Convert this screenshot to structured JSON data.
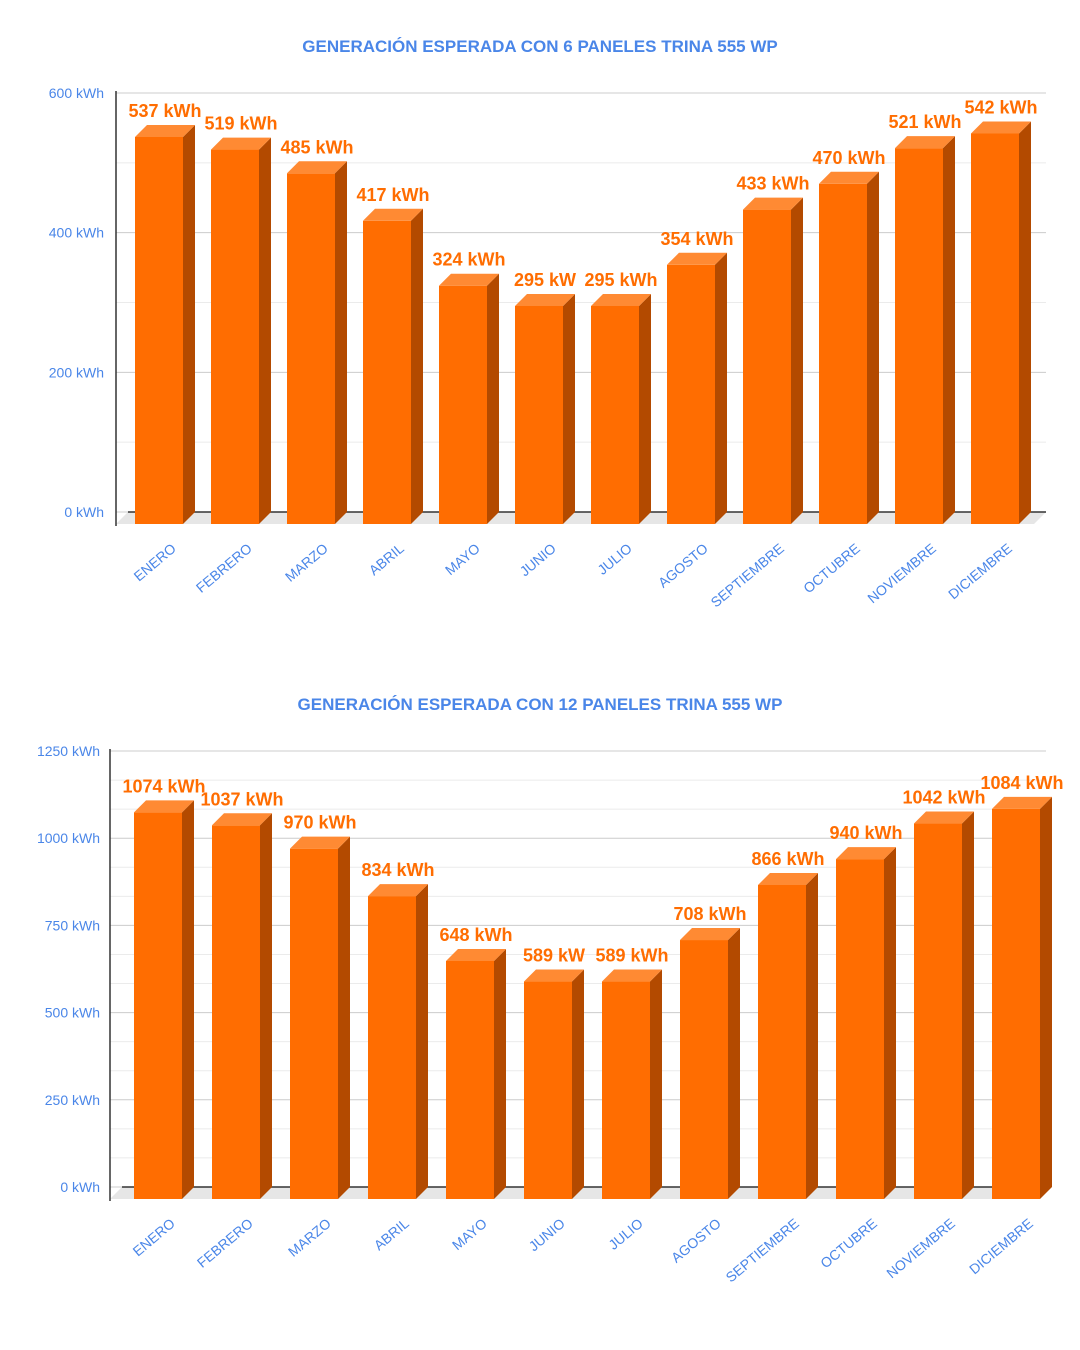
{
  "chart_data": [
    {
      "type": "bar",
      "title": "GENERACIÓN ESPERADA CON 6 PANELES TRINA 555 WP",
      "xlabel": "",
      "ylabel": "",
      "categories": [
        "ENERO",
        "FEBRERO",
        "MARZO",
        "ABRIL",
        "MAYO",
        "JUNIO",
        "JULIO",
        "AGOSTO",
        "SEPTIEMBRE",
        "OCTUBRE",
        "NOVIEMBRE",
        "DICIEMBRE"
      ],
      "values": [
        537,
        519,
        485,
        417,
        324,
        295,
        295,
        354,
        433,
        470,
        521,
        542
      ],
      "data_labels": [
        "537 kWh",
        "519 kWh",
        "485 kWh",
        "417 kWh",
        "324 kWh",
        "295 kW",
        "295 kWh",
        "354 kWh",
        "433 kWh",
        "470 kWh",
        "521 kWh",
        "542 kWh"
      ],
      "ylim": [
        0,
        600
      ],
      "y_ticks": [
        "0 kWh",
        "200 kWh",
        "400 kWh",
        "600 kWh"
      ],
      "y_tick_values": [
        0,
        200,
        400,
        600
      ],
      "grid": true,
      "bar_style": "3d",
      "colors": {
        "bar": "#ff6d01",
        "bar_side": "#b34a00",
        "bar_top": "#ff8a33",
        "axis_text": "#4a86e8",
        "label": "#ff6d01"
      }
    },
    {
      "type": "bar",
      "title": "GENERACIÓN ESPERADA CON 12 PANELES TRINA 555 WP",
      "xlabel": "",
      "ylabel": "",
      "categories": [
        "ENERO",
        "FEBRERO",
        "MARZO",
        "ABRIL",
        "MAYO",
        "JUNIO",
        "JULIO",
        "AGOSTO",
        "SEPTIEMBRE",
        "OCTUBRE",
        "NOVIEMBRE",
        "DICIEMBRE"
      ],
      "values": [
        1074,
        1037,
        970,
        834,
        648,
        589,
        589,
        708,
        866,
        940,
        1042,
        1084
      ],
      "data_labels": [
        "1074 kWh",
        "1037 kWh",
        "970 kWh",
        "834 kWh",
        "648 kWh",
        "589 kW",
        "589 kWh",
        "708 kWh",
        "866 kWh",
        "940 kWh",
        "1042 kWh",
        "1084 kWh"
      ],
      "ylim": [
        0,
        1250
      ],
      "y_ticks": [
        "0 kWh",
        "250 kWh",
        "500 kWh",
        "750 kWh",
        "1000 kWh",
        "1250 kWh"
      ],
      "y_tick_values": [
        0,
        250,
        500,
        750,
        1000,
        1250
      ],
      "grid": true,
      "bar_style": "3d",
      "colors": {
        "bar": "#ff6d01",
        "bar_side": "#b34a00",
        "bar_top": "#ff8a33",
        "axis_text": "#4a86e8",
        "label": "#ff6d01"
      }
    }
  ]
}
